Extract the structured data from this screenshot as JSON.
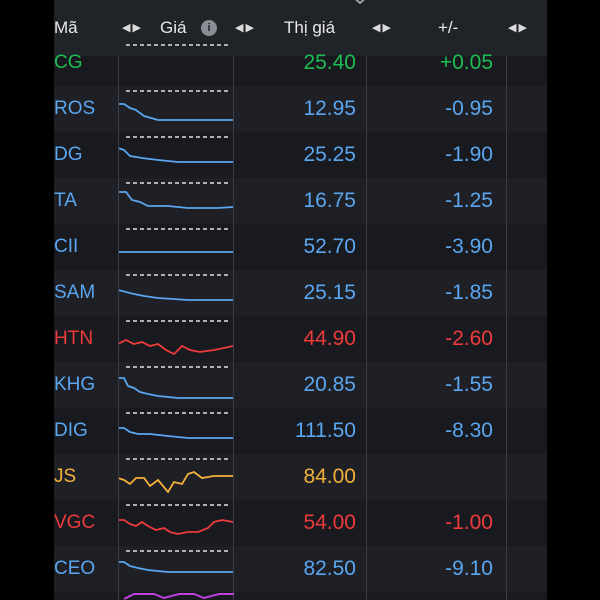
{
  "header": {
    "symbol_label": "Mã",
    "chart_label": "Giá",
    "price_label": "Thị giá",
    "change_label": "+/-",
    "sort_icon": "left-right-arrows-icon",
    "info_icon": "info-icon"
  },
  "colors": {
    "blue": "#5aa6ef",
    "red": "#ee3b3b",
    "yellow": "#f2b13a",
    "green": "#1dbd52",
    "purple": "#c040e0"
  },
  "rows": [
    {
      "symbol": "CG",
      "price": "25.40",
      "change": "+0.05",
      "color": "green"
    },
    {
      "symbol": "ROS",
      "price": "12.95",
      "change": "-0.95",
      "color": "blue"
    },
    {
      "symbol": "DG",
      "price": "25.25",
      "change": "-1.90",
      "color": "blue"
    },
    {
      "symbol": "TA",
      "price": "16.75",
      "change": "-1.25",
      "color": "blue"
    },
    {
      "symbol": "CII",
      "price": "52.70",
      "change": "-3.90",
      "color": "blue"
    },
    {
      "symbol": "SAM",
      "price": "25.15",
      "change": "-1.85",
      "color": "blue"
    },
    {
      "symbol": "HTN",
      "price": "44.90",
      "change": "-2.60",
      "color": "red"
    },
    {
      "symbol": "KHG",
      "price": "20.85",
      "change": "-1.55",
      "color": "blue"
    },
    {
      "symbol": "DIG",
      "price": "111.50",
      "change": "-8.30",
      "color": "blue"
    },
    {
      "symbol": "JS",
      "price": "84.00",
      "change": "",
      "color": "yellow"
    },
    {
      "symbol": "VGC",
      "price": "54.00",
      "change": "-1.00",
      "color": "red"
    },
    {
      "symbol": "CEO",
      "price": "82.50",
      "change": "-9.10",
      "color": "blue"
    }
  ]
}
